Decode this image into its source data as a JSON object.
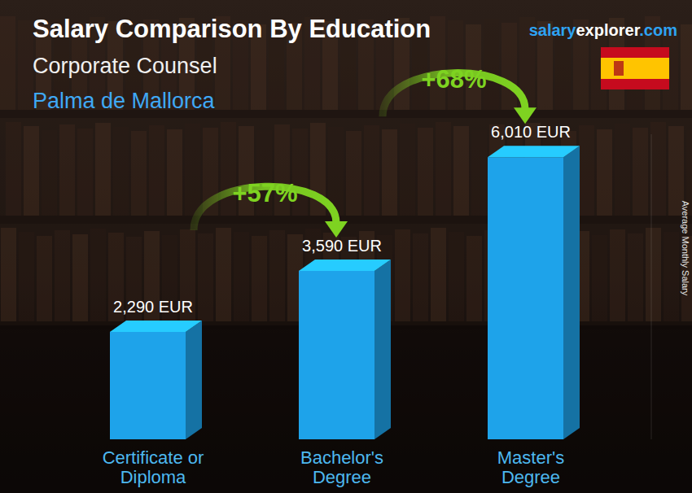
{
  "chart_data": {
    "type": "bar",
    "title": "Salary Comparison By Education",
    "subtitle": "Corporate Counsel",
    "location": "Palma de Mallorca",
    "source": [
      "salary",
      "explorer",
      ".com"
    ],
    "y_label": "Average Monthly Salary",
    "categories": [
      "Certificate or Diploma",
      "Bachelor's Degree",
      "Master's Degree"
    ],
    "values": [
      2290,
      3590,
      6010
    ],
    "value_labels": [
      "2,290 EUR",
      "3,590 EUR",
      "6,010 EUR"
    ],
    "data_labels": true,
    "color": "#1ea3ea",
    "ylim": [
      0,
      6500
    ],
    "yticks": [],
    "tick_labels": false,
    "grid": false,
    "annotations": [
      "+57%",
      "+68%"
    ]
  }
}
